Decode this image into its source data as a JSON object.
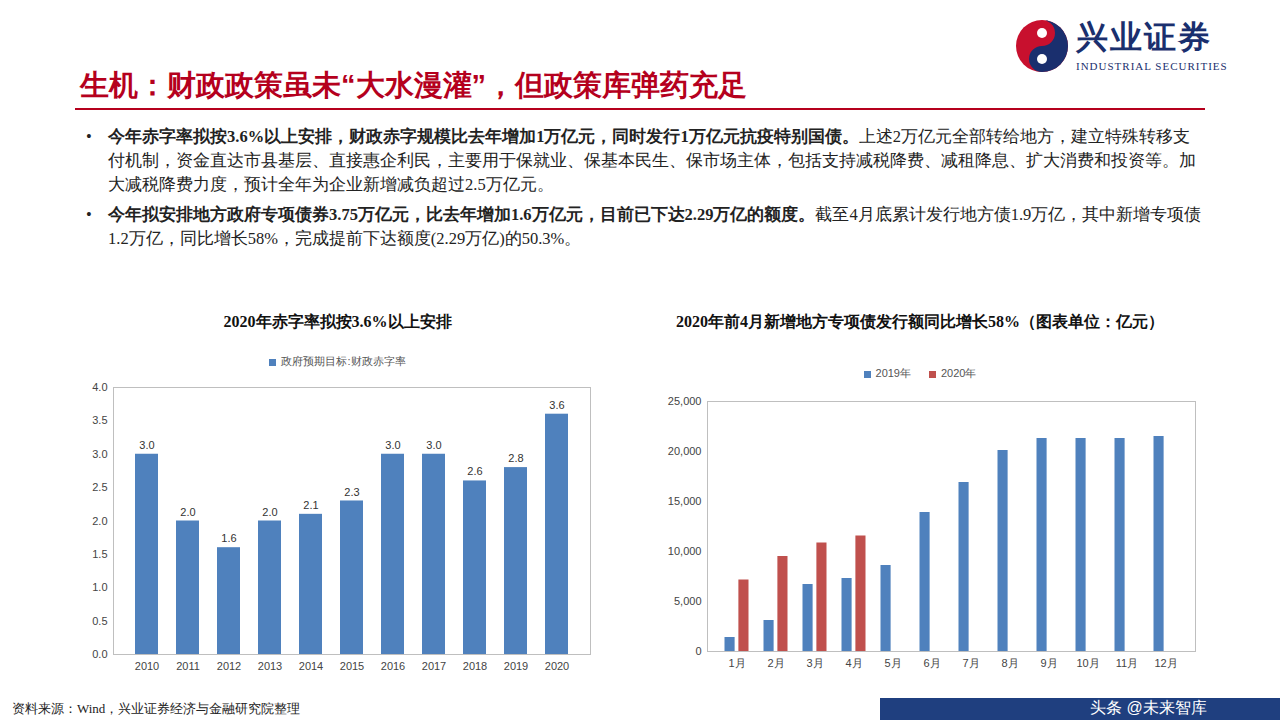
{
  "header": {
    "title": "生机：财政政策虽未“大水漫灌”，但政策库弹药充足"
  },
  "logo": {
    "name": "兴业证券",
    "english": "INDUSTRIAL SECURITIES"
  },
  "bullets": [
    {
      "bold": "今年赤字率拟按3.6%以上安排，财政赤字规模比去年增加1万亿元，同时发行1万亿元抗疫特别国债。",
      "text": "上述2万亿元全部转给地方，建立特殊转移支付机制，资金直达市县基层、直接惠企利民，主要用于保就业、保基本民生、保市场主体，包括支持减税降费、减租降息、扩大消费和投资等。加大减税降费力度，预计全年为企业新增减负超过2.5万亿元。"
    },
    {
      "bold": "今年拟安排地方政府专项债券3.75万亿元，比去年增加1.6万亿元，目前已下达2.29万亿的额度。",
      "text": "截至4月底累计发行地方债1.9万亿，其中新增专项债1.2万亿，同比增长58%，完成提前下达额度(2.29万亿)的50.3%。"
    }
  ],
  "source": "资料来源：Wind，兴业证券经济与金融研究院整理",
  "watermark": "头条 @未来智库",
  "chart_data": [
    {
      "type": "bar",
      "title": "2020年赤字率拟按3.6%以上安排",
      "categories": [
        "2010",
        "2011",
        "2012",
        "2013",
        "2014",
        "2015",
        "2016",
        "2017",
        "2018",
        "2019",
        "2020"
      ],
      "series": [
        {
          "name": "政府预期目标:财政赤字率",
          "color": "#4f81bd",
          "values": [
            3.0,
            2.0,
            1.6,
            2.0,
            2.1,
            2.3,
            3.0,
            3.0,
            2.6,
            2.8,
            3.6
          ],
          "value_labels": [
            "3.0",
            "2.0",
            "1.6",
            "2.0",
            "2.1",
            "2.3",
            "3.0",
            "3.0",
            "2.6",
            "2.8",
            "3.6"
          ]
        }
      ],
      "ylim": [
        0,
        4
      ],
      "yticks": [
        {
          "value": 0,
          "label": "0.0"
        },
        {
          "value": 0.5,
          "label": "0.5"
        },
        {
          "value": 1,
          "label": "1.0"
        },
        {
          "value": 1.5,
          "label": "1.5"
        },
        {
          "value": 2,
          "label": "2.0"
        },
        {
          "value": 2.5,
          "label": "2.5"
        },
        {
          "value": 3,
          "label": "3.0"
        },
        {
          "value": 3.5,
          "label": "3.5"
        },
        {
          "value": 4,
          "label": "4.0"
        }
      ],
      "grid": false,
      "legend": "top",
      "data_labels": true
    },
    {
      "type": "bar",
      "title": "2020年前4月新增地方专项债发行额同比增长58%（图表单位：亿元）",
      "categories": [
        "1月",
        "2月",
        "3月",
        "4月",
        "5月",
        "6月",
        "7月",
        "8月",
        "9月",
        "10月",
        "11月",
        "12月"
      ],
      "series": [
        {
          "name": "2019年",
          "color": "#4f81bd",
          "values": [
            1400,
            3100,
            6700,
            7300,
            8600,
            13900,
            16900,
            20100,
            21300,
            21300,
            21300,
            21500
          ]
        },
        {
          "name": "2020年",
          "color": "#c0504d",
          "values": [
            7150,
            9500,
            10850,
            11550,
            null,
            null,
            null,
            null,
            null,
            null,
            null,
            null
          ]
        }
      ],
      "ylim": [
        0,
        25000
      ],
      "yticks": [
        0,
        {
          "value": 5000,
          "label": "5,000"
        },
        {
          "value": 10000,
          "label": "10,000"
        },
        {
          "value": 15000,
          "label": "15,000"
        },
        {
          "value": 20000,
          "label": "20,000"
        },
        {
          "value": 25000,
          "label": "25,000"
        }
      ],
      "grid": false,
      "legend": "top",
      "data_labels": false
    }
  ]
}
